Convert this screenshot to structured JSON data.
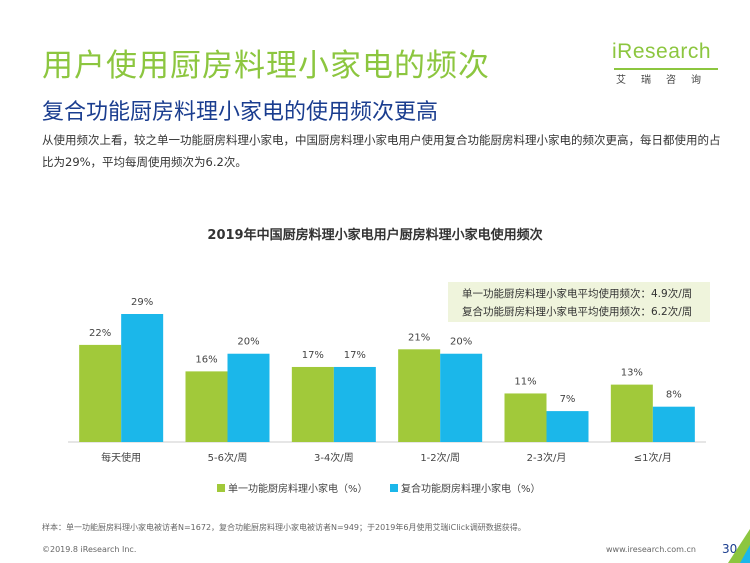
{
  "header": {
    "title": "用户使用厨房料理小家电的频次",
    "subtitle": "复合功能厨房料理小家电的使用频次更高",
    "summary": "从使用频次上看，较之单一功能厨房料理小家电，中国厨房料理小家电用户使用复合功能厨房料理小家电的频次更高，每日都使用的占比为29%，平均每周使用频次为6.2次。"
  },
  "logo": {
    "brand": "iResearch",
    "chinese": "艾瑞咨询"
  },
  "callout": {
    "line1": "单一功能厨房料理小家电平均使用频次：4.9次/周",
    "line2": "复合功能厨房料理小家电平均使用频次：6.2次/周"
  },
  "chart_data": {
    "type": "bar",
    "title": "2019年中国厨房料理小家电用户厨房料理小家电使用频次",
    "categories": [
      "每天使用",
      "5-6次/周",
      "3-4次/周",
      "1-2次/周",
      "2-3次/月",
      "≤1次/月"
    ],
    "series": [
      {
        "name": "单一功能厨房料理小家电（%）",
        "values": [
          22,
          16,
          17,
          21,
          11,
          13
        ],
        "labels": [
          "22%",
          "16%",
          "17%",
          "21%",
          "11%",
          "13%"
        ],
        "color": "#a1c93a"
      },
      {
        "name": "复合功能厨房料理小家电（%）",
        "values": [
          29,
          20,
          17,
          20,
          7,
          8
        ],
        "labels": [
          "29%",
          "20%",
          "17%",
          "20%",
          "7%",
          "8%"
        ],
        "color": "#1bb7ea"
      }
    ],
    "ylim": [
      0,
      30
    ],
    "legend_position": "bottom",
    "grid": false
  },
  "footer": {
    "footnote": "样本：单一功能厨房料理小家电被访者N=1672，复合功能厨房料理小家电被访者N=949；于2019年6月使用艾瑞iClick调研数据获得。",
    "copyright": "©2019.8 iResearch Inc.",
    "website": "www.iresearch.com.cn",
    "page": "30"
  }
}
